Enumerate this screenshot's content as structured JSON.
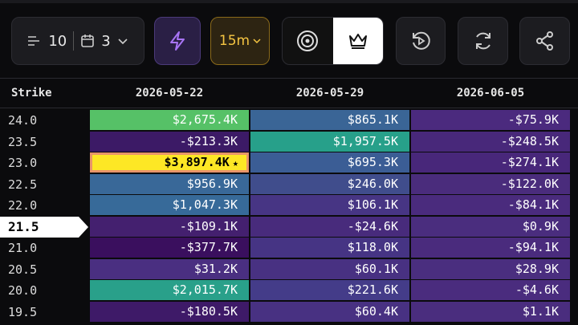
{
  "toolbar": {
    "rows": "10",
    "columns": "3",
    "interval": "15m"
  },
  "table": {
    "header": [
      "Strike",
      "2026-05-22",
      "2026-05-29",
      "2026-06-05"
    ],
    "rows": [
      {
        "strike": "24.0",
        "cells": [
          "$2,675.4K",
          "$865.1K",
          "-$75.9K"
        ],
        "colors": [
          "#56c167",
          "#3a6596",
          "#4b2a7e"
        ]
      },
      {
        "strike": "23.5",
        "cells": [
          "-$213.3K",
          "$1,957.5K",
          "-$248.5K"
        ],
        "colors": [
          "#3c1a66",
          "#27a08a",
          "#48287a"
        ]
      },
      {
        "strike": "23.0",
        "cells": [
          "$3,897.4K",
          "$695.3K",
          "-$274.1K"
        ],
        "colors": [
          "#fde725",
          "#3b5d95",
          "#48277a"
        ],
        "star": 0
      },
      {
        "strike": "22.5",
        "cells": [
          "$956.9K",
          "$246.0K",
          "-$122.0K"
        ],
        "colors": [
          "#396898",
          "#404d8c",
          "#4a2c7c"
        ]
      },
      {
        "strike": "22.0",
        "cells": [
          "$1,047.3K",
          "$106.1K",
          "-$84.1K"
        ],
        "colors": [
          "#376a99",
          "#473584",
          "#4a2b7d"
        ]
      },
      {
        "strike": "21.5",
        "cells": [
          "-$109.1K",
          "-$24.6K",
          "$0.9K"
        ],
        "colors": [
          "#44206f",
          "#482b7c",
          "#4a2d7e"
        ],
        "current": true
      },
      {
        "strike": "21.0",
        "cells": [
          "-$377.7K",
          "$118.0K",
          "-$94.1K"
        ],
        "colors": [
          "#3a0f5e",
          "#463484",
          "#4a2b7d"
        ]
      },
      {
        "strike": "20.5",
        "cells": [
          "$31.2K",
          "$60.1K",
          "$28.9K"
        ],
        "colors": [
          "#4a2f81",
          "#483182",
          "#4a2e7f"
        ]
      },
      {
        "strike": "20.0",
        "cells": [
          "$2,015.7K",
          "$221.6K",
          "-$4.6K"
        ],
        "colors": [
          "#29a08a",
          "#443c89",
          "#4a2c7e"
        ]
      },
      {
        "strike": "19.5",
        "cells": [
          "-$180.5K",
          "$60.4K",
          "$1.1K"
        ],
        "colors": [
          "#3e1a68",
          "#483182",
          "#4a2d7e"
        ]
      }
    ]
  }
}
